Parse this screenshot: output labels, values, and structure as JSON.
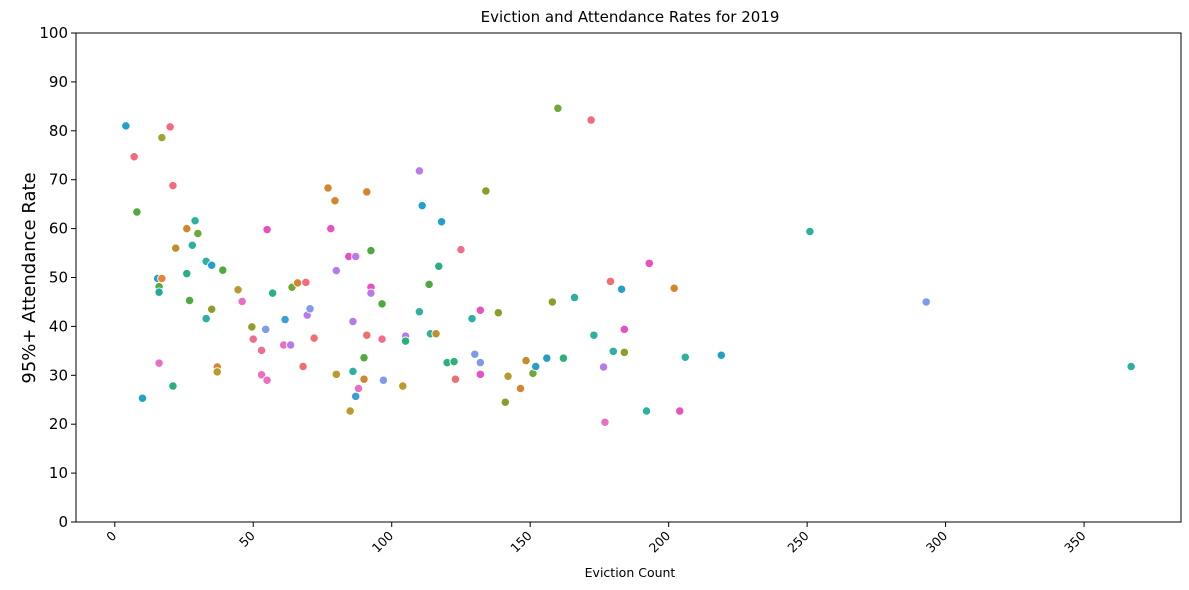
{
  "chart_data": {
    "type": "scatter",
    "title": "Eviction and Attendance Rates for 2019",
    "xlabel": "Eviction Count",
    "ylabel": "95%+ Attendance Rate",
    "xlim": [
      -14,
      385
    ],
    "ylim": [
      0,
      100
    ],
    "xticks": [
      0,
      50,
      100,
      150,
      200,
      250,
      300,
      350
    ],
    "yticks": [
      0,
      10,
      20,
      30,
      40,
      50,
      60,
      70,
      80,
      90,
      100
    ],
    "xtick_rotation_deg": 45,
    "grid": false,
    "legend": "none",
    "points": [
      {
        "x": 4,
        "y": 81.0,
        "color": "#23a0c8"
      },
      {
        "x": 7,
        "y": 74.7,
        "color": "#f5697f"
      },
      {
        "x": 8,
        "y": 63.4,
        "color": "#4ea93f"
      },
      {
        "x": 10,
        "y": 25.3,
        "color": "#23a0c8"
      },
      {
        "x": 15.5,
        "y": 49.8,
        "color": "#23a0c8"
      },
      {
        "x": 16,
        "y": 48.1,
        "color": "#4ea93f"
      },
      {
        "x": 16,
        "y": 47.0,
        "color": "#22aa99"
      },
      {
        "x": 16,
        "y": 32.5,
        "color": "#ea6fc4"
      },
      {
        "x": 17,
        "y": 49.8,
        "color": "#e8843a"
      },
      {
        "x": 17,
        "y": 78.6,
        "color": "#a0a433"
      },
      {
        "x": 20,
        "y": 80.8,
        "color": "#f5697f"
      },
      {
        "x": 21,
        "y": 68.8,
        "color": "#f5697f"
      },
      {
        "x": 21,
        "y": 27.8,
        "color": "#2ab07a"
      },
      {
        "x": 22,
        "y": 56.0,
        "color": "#c08f2a"
      },
      {
        "x": 26,
        "y": 60.0,
        "color": "#d4862f"
      },
      {
        "x": 26,
        "y": 50.8,
        "color": "#2ab07a"
      },
      {
        "x": 27,
        "y": 45.3,
        "color": "#4ea93f"
      },
      {
        "x": 28,
        "y": 56.6,
        "color": "#2db0a0"
      },
      {
        "x": 29,
        "y": 61.6,
        "color": "#2db0a0"
      },
      {
        "x": 30,
        "y": 59.0,
        "color": "#6fa832"
      },
      {
        "x": 33,
        "y": 53.3,
        "color": "#2db0a0"
      },
      {
        "x": 33,
        "y": 41.6,
        "color": "#2db0a0"
      },
      {
        "x": 35,
        "y": 52.5,
        "color": "#23a0c8"
      },
      {
        "x": 35,
        "y": 43.5,
        "color": "#8e9c2a"
      },
      {
        "x": 37,
        "y": 31.7,
        "color": "#d4862f"
      },
      {
        "x": 37,
        "y": 30.7,
        "color": "#b89a2e"
      },
      {
        "x": 39,
        "y": 51.5,
        "color": "#4ea93f"
      },
      {
        "x": 44.5,
        "y": 47.5,
        "color": "#b89a2e"
      },
      {
        "x": 46,
        "y": 45.1,
        "color": "#ea6fc4"
      },
      {
        "x": 49.5,
        "y": 39.9,
        "color": "#8e9c2a"
      },
      {
        "x": 50,
        "y": 37.4,
        "color": "#ef6e8e"
      },
      {
        "x": 53,
        "y": 35.1,
        "color": "#ef6e8e"
      },
      {
        "x": 53,
        "y": 30.1,
        "color": "#ea6fc4"
      },
      {
        "x": 54.5,
        "y": 39.4,
        "color": "#7d9bea"
      },
      {
        "x": 55,
        "y": 59.8,
        "color": "#ea4fc0"
      },
      {
        "x": 55,
        "y": 29.0,
        "color": "#ea6fc4"
      },
      {
        "x": 57,
        "y": 46.8,
        "color": "#2ab07a"
      },
      {
        "x": 61,
        "y": 36.2,
        "color": "#ea6fc4"
      },
      {
        "x": 61.5,
        "y": 41.4,
        "color": "#3a9fd6"
      },
      {
        "x": 63.5,
        "y": 36.2,
        "color": "#b77ae8"
      },
      {
        "x": 64,
        "y": 48.0,
        "color": "#6fa832"
      },
      {
        "x": 66,
        "y": 48.9,
        "color": "#d4862f"
      },
      {
        "x": 68,
        "y": 31.8,
        "color": "#ef6e6e"
      },
      {
        "x": 69,
        "y": 49.0,
        "color": "#f5697f"
      },
      {
        "x": 69.5,
        "y": 42.3,
        "color": "#b77ae8"
      },
      {
        "x": 70.5,
        "y": 43.6,
        "color": "#7d9bea"
      },
      {
        "x": 72,
        "y": 37.6,
        "color": "#ef6e6e"
      },
      {
        "x": 77,
        "y": 68.3,
        "color": "#d4862f"
      },
      {
        "x": 78,
        "y": 60.0,
        "color": "#ea4fc0"
      },
      {
        "x": 79.5,
        "y": 65.7,
        "color": "#d4862f"
      },
      {
        "x": 80,
        "y": 51.4,
        "color": "#b77ae8"
      },
      {
        "x": 80,
        "y": 30.2,
        "color": "#b89a2e"
      },
      {
        "x": 84.5,
        "y": 54.3,
        "color": "#ea4fc0"
      },
      {
        "x": 85,
        "y": 22.7,
        "color": "#b89a2e"
      },
      {
        "x": 86,
        "y": 41.0,
        "color": "#b77ae8"
      },
      {
        "x": 86,
        "y": 30.8,
        "color": "#2db0a0"
      },
      {
        "x": 87,
        "y": 54.3,
        "color": "#b77ae8"
      },
      {
        "x": 87,
        "y": 25.7,
        "color": "#3a9fd6"
      },
      {
        "x": 88,
        "y": 27.3,
        "color": "#ea6fc4"
      },
      {
        "x": 90,
        "y": 33.6,
        "color": "#4ea93f"
      },
      {
        "x": 90,
        "y": 29.2,
        "color": "#d4862f"
      },
      {
        "x": 91,
        "y": 67.5,
        "color": "#d4862f"
      },
      {
        "x": 91,
        "y": 38.2,
        "color": "#ef6e6e"
      },
      {
        "x": 92.5,
        "y": 55.5,
        "color": "#4ea93f"
      },
      {
        "x": 92.5,
        "y": 48.0,
        "color": "#ea4fc0"
      },
      {
        "x": 92.5,
        "y": 46.8,
        "color": "#b77ae8"
      },
      {
        "x": 96.5,
        "y": 44.6,
        "color": "#4ea93f"
      },
      {
        "x": 96.5,
        "y": 37.4,
        "color": "#ef6e8e"
      },
      {
        "x": 97,
        "y": 29.0,
        "color": "#7d9bea"
      },
      {
        "x": 104,
        "y": 27.8,
        "color": "#b89a2e"
      },
      {
        "x": 105,
        "y": 38.0,
        "color": "#b77ae8"
      },
      {
        "x": 105,
        "y": 37.0,
        "color": "#2ab07a"
      },
      {
        "x": 110,
        "y": 71.8,
        "color": "#b77ae8"
      },
      {
        "x": 110,
        "y": 43.0,
        "color": "#2db0a0"
      },
      {
        "x": 111,
        "y": 64.7,
        "color": "#23a0c8"
      },
      {
        "x": 113.5,
        "y": 48.6,
        "color": "#4ea93f"
      },
      {
        "x": 114,
        "y": 38.5,
        "color": "#2db0a0"
      },
      {
        "x": 116,
        "y": 38.5,
        "color": "#c08f2a"
      },
      {
        "x": 117,
        "y": 52.3,
        "color": "#2ab07a"
      },
      {
        "x": 118,
        "y": 61.4,
        "color": "#23a0c8"
      },
      {
        "x": 120,
        "y": 32.6,
        "color": "#2ab07a"
      },
      {
        "x": 122.5,
        "y": 32.8,
        "color": "#2ab07a"
      },
      {
        "x": 123,
        "y": 29.2,
        "color": "#ef6e6e"
      },
      {
        "x": 125,
        "y": 55.7,
        "color": "#ef6e8e"
      },
      {
        "x": 129,
        "y": 41.6,
        "color": "#2db0a0"
      },
      {
        "x": 130,
        "y": 34.3,
        "color": "#7d9bea"
      },
      {
        "x": 132,
        "y": 43.3,
        "color": "#ea4fc0"
      },
      {
        "x": 132,
        "y": 32.6,
        "color": "#7d9bea"
      },
      {
        "x": 132,
        "y": 30.2,
        "color": "#ea4fc0"
      },
      {
        "x": 134,
        "y": 67.7,
        "color": "#8e9c2a"
      },
      {
        "x": 138.5,
        "y": 42.8,
        "color": "#8e9c2a"
      },
      {
        "x": 141,
        "y": 24.5,
        "color": "#8e9c2a"
      },
      {
        "x": 142,
        "y": 29.8,
        "color": "#b89a2e"
      },
      {
        "x": 146.5,
        "y": 27.3,
        "color": "#d4862f"
      },
      {
        "x": 148.5,
        "y": 33.0,
        "color": "#c08f2a"
      },
      {
        "x": 151,
        "y": 30.4,
        "color": "#6fa832"
      },
      {
        "x": 152,
        "y": 31.8,
        "color": "#23a0c8"
      },
      {
        "x": 156,
        "y": 33.5,
        "color": "#23a0c8"
      },
      {
        "x": 158,
        "y": 45.0,
        "color": "#8e9c2a"
      },
      {
        "x": 160,
        "y": 84.6,
        "color": "#6fa832"
      },
      {
        "x": 162,
        "y": 33.5,
        "color": "#2ab07a"
      },
      {
        "x": 166,
        "y": 45.9,
        "color": "#2db0a0"
      },
      {
        "x": 172,
        "y": 82.2,
        "color": "#f5697f"
      },
      {
        "x": 173,
        "y": 38.2,
        "color": "#2db0a0"
      },
      {
        "x": 176.5,
        "y": 31.7,
        "color": "#b77ae8"
      },
      {
        "x": 177,
        "y": 20.4,
        "color": "#ea6fc4"
      },
      {
        "x": 179,
        "y": 49.2,
        "color": "#ef6e6e"
      },
      {
        "x": 180,
        "y": 34.9,
        "color": "#2db0a0"
      },
      {
        "x": 183,
        "y": 47.6,
        "color": "#23a0c8"
      },
      {
        "x": 184,
        "y": 39.4,
        "color": "#ea4fc0"
      },
      {
        "x": 184,
        "y": 34.7,
        "color": "#8e9c2a"
      },
      {
        "x": 192,
        "y": 22.7,
        "color": "#2db0a0"
      },
      {
        "x": 193,
        "y": 52.9,
        "color": "#ea4fc0"
      },
      {
        "x": 202,
        "y": 47.8,
        "color": "#d4862f"
      },
      {
        "x": 204,
        "y": 22.7,
        "color": "#ea4fc0"
      },
      {
        "x": 206,
        "y": 33.7,
        "color": "#2db0a0"
      },
      {
        "x": 219,
        "y": 34.1,
        "color": "#23a0c8"
      },
      {
        "x": 251,
        "y": 59.4,
        "color": "#2db0a0"
      },
      {
        "x": 293,
        "y": 45.0,
        "color": "#7d9bea"
      },
      {
        "x": 367,
        "y": 31.8,
        "color": "#2db0a0"
      }
    ]
  }
}
